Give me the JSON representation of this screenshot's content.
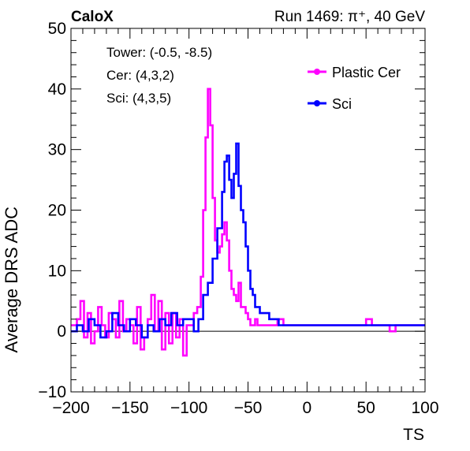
{
  "chart_data": {
    "type": "line",
    "experiment_label": "CaloX",
    "run_label": "Run 1469: π⁺, 40 GeV",
    "xlabel": "TS",
    "ylabel": "Average DRS ADC",
    "xlim": [
      -200,
      100
    ],
    "ylim": [
      -10,
      50
    ],
    "x_ticks": [
      -200,
      -150,
      -100,
      -50,
      0,
      50,
      100
    ],
    "y_ticks": [
      -10,
      0,
      10,
      20,
      30,
      40,
      50
    ],
    "x_tick_labels": [
      "−200",
      "−150",
      "−100",
      "−50",
      "0",
      "50",
      "100"
    ],
    "y_tick_labels": [
      "−10",
      "0",
      "10",
      "20",
      "30",
      "40",
      "50"
    ],
    "reference_line_y": 0,
    "info_lines": [
      "Tower: (-0.5, -8.5)",
      "Cer: (4,3,2)",
      "Sci: (4,3,5)"
    ],
    "legend_position": "top-right",
    "series": [
      {
        "name": "Plastic Cer",
        "color": "#ff00ff",
        "x": [
          -200,
          -195,
          -192,
          -189,
          -186,
          -183,
          -180,
          -177,
          -174,
          -171,
          -168,
          -165,
          -162,
          -159,
          -156,
          -153,
          -150,
          -147,
          -144,
          -141,
          -138,
          -135,
          -132,
          -129,
          -126,
          -123,
          -120,
          -117,
          -114,
          -111,
          -108,
          -105,
          -102,
          -99,
          -96,
          -93,
          -90,
          -88,
          -86,
          -84,
          -82,
          -80,
          -78,
          -76,
          -74,
          -72,
          -70,
          -68,
          -66,
          -64,
          -62,
          -60,
          -58,
          -56,
          -54,
          -52,
          -50,
          -48,
          -46,
          -44,
          -42,
          -40,
          -35,
          -30,
          -25,
          -20,
          -15,
          -10,
          -5,
          0,
          5,
          10,
          15,
          20,
          25,
          30,
          35,
          40,
          45,
          50,
          55,
          60,
          65,
          70,
          75,
          80,
          85,
          90,
          95,
          100
        ],
        "y": [
          1,
          2,
          5,
          -1,
          3,
          -2,
          0,
          4,
          1,
          -1,
          3,
          2,
          -1,
          5,
          0,
          2,
          1,
          -2,
          4,
          -3,
          -1,
          2,
          6,
          0,
          5,
          -3,
          3,
          -2,
          3,
          -1,
          2,
          -4,
          1,
          1,
          3,
          4,
          9,
          20,
          32,
          40,
          34,
          22,
          15,
          13,
          14,
          16,
          18,
          15,
          10,
          7,
          6,
          5,
          8,
          4,
          4,
          3,
          2,
          1,
          1,
          2,
          1,
          1,
          1,
          1,
          2,
          1,
          1,
          1,
          1,
          1,
          1,
          1,
          1,
          1,
          1,
          1,
          1,
          1,
          1,
          2,
          1,
          1,
          1,
          0,
          1,
          1,
          1,
          1,
          1,
          1
        ]
      },
      {
        "name": "Sci",
        "color": "#0000ff",
        "x": [
          -200,
          -195,
          -190,
          -185,
          -180,
          -175,
          -170,
          -165,
          -160,
          -155,
          -150,
          -145,
          -140,
          -135,
          -130,
          -125,
          -120,
          -115,
          -110,
          -105,
          -100,
          -96,
          -92,
          -88,
          -84,
          -80,
          -76,
          -72,
          -70,
          -68,
          -66,
          -64,
          -62,
          -60,
          -58,
          -56,
          -54,
          -52,
          -50,
          -48,
          -46,
          -44,
          -42,
          -40,
          -36,
          -32,
          -28,
          -24,
          -20,
          -15,
          -10,
          -5,
          0,
          5,
          10,
          15,
          20,
          25,
          30,
          35,
          40,
          45,
          50,
          55,
          60,
          65,
          70,
          75,
          80,
          85,
          90,
          95,
          100
        ],
        "y": [
          0,
          1,
          0,
          2,
          1,
          -1,
          0,
          3,
          1,
          0,
          2,
          1,
          -1,
          1,
          0,
          2,
          1,
          3,
          1,
          2,
          2,
          0,
          2,
          6,
          8,
          12,
          17,
          23,
          28,
          29,
          25,
          22,
          26,
          31,
          24,
          20,
          18,
          14,
          10,
          7,
          6,
          4,
          4,
          3,
          3,
          2,
          2,
          1,
          1,
          1,
          1,
          1,
          1,
          1,
          1,
          1,
          1,
          1,
          1,
          1,
          1,
          1,
          1,
          1,
          1,
          1,
          1,
          1,
          1,
          1,
          1,
          1,
          1
        ]
      }
    ]
  }
}
